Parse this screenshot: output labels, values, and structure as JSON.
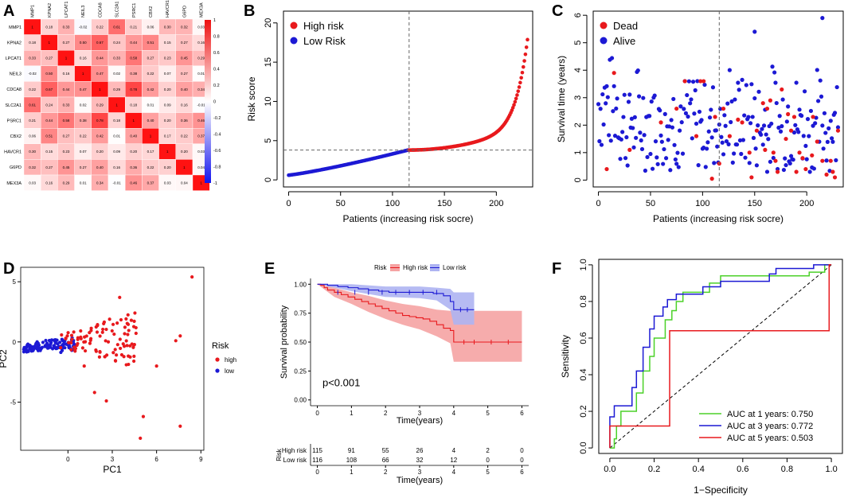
{
  "colors": {
    "red": "#e8191d",
    "blue": "#1c19d4",
    "green": "#4bd128",
    "ci_red": "#f5a3a3",
    "ci_blue": "#aeb4f2",
    "ring_blue": "#3a48d6",
    "ring_red": "#e84b4b"
  },
  "chart_data": [
    {
      "panel": "A",
      "type": "heatmap",
      "genes": [
        "MMP1",
        "KPNA2",
        "LPCAT1",
        "NEIL3",
        "CDCA8",
        "SLC2A1",
        "PSRC1",
        "CBX2",
        "HAVCR1",
        "G6PD",
        "MEX3A"
      ],
      "matrix": [
        [
          1,
          0.18,
          0.33,
          -0.02,
          0.22,
          0.61,
          0.21,
          0.06,
          0.3,
          0.32,
          0.03
        ],
        [
          0.18,
          1,
          0.27,
          0.5,
          0.67,
          0.24,
          0.44,
          0.51,
          0.15,
          0.27,
          0.16
        ],
        [
          0.33,
          0.27,
          1,
          0.16,
          0.44,
          0.33,
          0.58,
          0.27,
          0.23,
          0.45,
          0.29
        ],
        [
          -0.02,
          0.5,
          0.16,
          1,
          0.47,
          0.02,
          0.38,
          0.22,
          0.07,
          0.27,
          0.01
        ],
        [
          0.22,
          0.67,
          0.44,
          0.47,
          1,
          0.29,
          0.78,
          0.42,
          0.2,
          0.4,
          0.34
        ],
        [
          0.61,
          0.24,
          0.33,
          0.02,
          0.29,
          1,
          0.18,
          0.01,
          0.09,
          0.16,
          -0.01
        ],
        [
          0.21,
          0.44,
          0.58,
          0.38,
          0.78,
          0.18,
          1,
          0.4,
          0.2,
          0.36,
          0.46
        ],
        [
          0.06,
          0.51,
          0.27,
          0.22,
          0.42,
          0.01,
          0.4,
          1,
          0.17,
          0.22,
          0.37
        ],
        [
          0.3,
          0.15,
          0.23,
          0.07,
          0.2,
          0.09,
          0.2,
          0.17,
          1,
          0.2,
          0.03
        ],
        [
          0.32,
          0.27,
          0.45,
          0.27,
          0.4,
          0.16,
          0.36,
          0.22,
          0.2,
          1,
          0.04
        ],
        [
          0.03,
          0.16,
          0.29,
          0.01,
          0.34,
          -0.01,
          0.46,
          0.37,
          0.03,
          0.04,
          1
        ]
      ],
      "colorbar_ticks": [
        "1",
        "0.8",
        "0.6",
        "0.4",
        "0.2",
        "0",
        "-0.2",
        "-0.4",
        "-0.6",
        "-0.8",
        "-1"
      ]
    },
    {
      "panel": "B",
      "type": "scatter",
      "xlabel": "Patients (increasing risk socre)",
      "ylabel": "Risk score",
      "xlim": [
        0,
        231
      ],
      "ylim": [
        0,
        21
      ],
      "xticks": [
        "0",
        "50",
        "100",
        "150",
        "200"
      ],
      "yticks": [
        "0",
        "5",
        "10",
        "15",
        "20"
      ],
      "cutoff_index": 116,
      "cutoff_score": 3.8,
      "n_low": 116,
      "n_high": 115,
      "min_score": 0.6,
      "max_score": 20.5,
      "legend": [
        "High risk",
        "Low Risk"
      ]
    },
    {
      "panel": "C",
      "type": "scatter",
      "xlabel": "Patients (increasing risk socre)",
      "ylabel": "Survival time (years)",
      "xlim": [
        0,
        231
      ],
      "ylim": [
        0,
        6
      ],
      "xticks": [
        "0",
        "50",
        "100",
        "150",
        "200"
      ],
      "yticks": [
        "0",
        "1",
        "2",
        "3",
        "4",
        "5",
        "6"
      ],
      "cutoff_index": 116,
      "legend": [
        "Dead",
        "Alive"
      ],
      "dead_points": [
        [
          8,
          0.4
        ],
        [
          15,
          3.9
        ],
        [
          30,
          1.1
        ],
        [
          60,
          2.1
        ],
        [
          75,
          2.6
        ],
        [
          83,
          3.6
        ],
        [
          94,
          1.6
        ],
        [
          98,
          3.6
        ],
        [
          101,
          3.6
        ],
        [
          109,
          0.05
        ],
        [
          112,
          2.3
        ],
        [
          116,
          0.6
        ],
        [
          120,
          2.6
        ],
        [
          126,
          1.6
        ],
        [
          134,
          2.2
        ],
        [
          138,
          2.1
        ],
        [
          145,
          1.0
        ],
        [
          147,
          0.1
        ],
        [
          152,
          1.8
        ],
        [
          158,
          2.8
        ],
        [
          160,
          1.1
        ],
        [
          162,
          2.6
        ],
        [
          165,
          2.9
        ],
        [
          168,
          1.0
        ],
        [
          170,
          0.7
        ],
        [
          172,
          0.3
        ],
        [
          176,
          3.3
        ],
        [
          180,
          1.5
        ],
        [
          185,
          1.8
        ],
        [
          188,
          2.3
        ],
        [
          190,
          0.3
        ],
        [
          193,
          1.0
        ],
        [
          196,
          0.8
        ],
        [
          199,
          0.4
        ],
        [
          205,
          0.9
        ],
        [
          210,
          1.4
        ],
        [
          215,
          0.7
        ],
        [
          219,
          0.2
        ],
        [
          223,
          0.7
        ],
        [
          225,
          0.3
        ],
        [
          227,
          0.1
        ],
        [
          230,
          1.8
        ],
        [
          206,
          2.3
        ],
        [
          182,
          2.4
        ]
      ]
    },
    {
      "panel": "D",
      "type": "scatter",
      "xlabel": "PC1",
      "ylabel": "PC2",
      "xticks": [
        "0",
        "3",
        "6",
        "9"
      ],
      "yticks": [
        "-5",
        "0",
        "5"
      ],
      "xlim": [
        -3.2,
        9.2
      ],
      "ylim": [
        -9,
        6.2
      ],
      "legend_title": "Risk",
      "legend": [
        "high",
        "low"
      ],
      "high_extra_points": [
        [
          8.4,
          5.4
        ],
        [
          7.6,
          -7.0
        ],
        [
          5.1,
          -6.2
        ],
        [
          4.9,
          -8.0
        ],
        [
          7.3,
          0.1
        ],
        [
          7.6,
          0.5
        ],
        [
          3.5,
          3.7
        ],
        [
          1.1,
          -2.0
        ],
        [
          1.8,
          -4.2
        ],
        [
          2.6,
          -4.9
        ],
        [
          4.0,
          -0.3
        ],
        [
          6.0,
          -2.0
        ]
      ]
    },
    {
      "panel": "E",
      "type": "line",
      "title": "Risk",
      "legend": [
        "High risk",
        "Low risk"
      ],
      "xlabel": "Time(years)",
      "ylabel": "Survival probability",
      "xticks": [
        "0",
        "1",
        "2",
        "3",
        "4",
        "5",
        "6"
      ],
      "yticks": [
        "0.00",
        "0.25",
        "0.50",
        "0.75",
        "1.00"
      ],
      "xlim": [
        0,
        6.1
      ],
      "ylim": [
        0,
        1
      ],
      "pvalue": "p<0.001",
      "high_risk_curve": [
        [
          0,
          1.0
        ],
        [
          0.1,
          0.99
        ],
        [
          0.2,
          0.97
        ],
        [
          0.3,
          0.95
        ],
        [
          0.5,
          0.93
        ],
        [
          0.7,
          0.91
        ],
        [
          0.9,
          0.89
        ],
        [
          1.1,
          0.87
        ],
        [
          1.3,
          0.85
        ],
        [
          1.5,
          0.83
        ],
        [
          1.7,
          0.81
        ],
        [
          1.9,
          0.79
        ],
        [
          2.1,
          0.77
        ],
        [
          2.3,
          0.75
        ],
        [
          2.5,
          0.73
        ],
        [
          2.7,
          0.72
        ],
        [
          2.9,
          0.71
        ],
        [
          3.1,
          0.7
        ],
        [
          3.3,
          0.68
        ],
        [
          3.5,
          0.65
        ],
        [
          3.7,
          0.62
        ],
        [
          3.9,
          0.6
        ],
        [
          4.0,
          0.5
        ],
        [
          6.0,
          0.5
        ]
      ],
      "high_ci": {
        "upper": [
          [
            0,
            1.0
          ],
          [
            0.5,
            0.97
          ],
          [
            1.0,
            0.93
          ],
          [
            1.5,
            0.9
          ],
          [
            2.0,
            0.86
          ],
          [
            2.5,
            0.83
          ],
          [
            3.0,
            0.81
          ],
          [
            3.5,
            0.78
          ],
          [
            3.9,
            0.77
          ],
          [
            4.0,
            0.77
          ],
          [
            6.0,
            0.77
          ]
        ],
        "lower": [
          [
            0,
            1.0
          ],
          [
            0.5,
            0.89
          ],
          [
            1.0,
            0.83
          ],
          [
            1.5,
            0.76
          ],
          [
            2.0,
            0.7
          ],
          [
            2.5,
            0.65
          ],
          [
            3.0,
            0.61
          ],
          [
            3.5,
            0.55
          ],
          [
            3.9,
            0.49
          ],
          [
            4.0,
            0.33
          ],
          [
            6.0,
            0.33
          ]
        ]
      },
      "low_risk_curve": [
        [
          0,
          1.0
        ],
        [
          0.3,
          0.99
        ],
        [
          0.6,
          0.98
        ],
        [
          0.9,
          0.97
        ],
        [
          1.2,
          0.96
        ],
        [
          1.5,
          0.95
        ],
        [
          1.8,
          0.94
        ],
        [
          2.1,
          0.93
        ],
        [
          2.6,
          0.93
        ],
        [
          3.0,
          0.93
        ],
        [
          3.4,
          0.92
        ],
        [
          3.7,
          0.9
        ],
        [
          3.9,
          0.85
        ],
        [
          4.0,
          0.78
        ],
        [
          4.6,
          0.78
        ]
      ],
      "low_ci": {
        "upper": [
          [
            0,
            1.0
          ],
          [
            1.0,
            1.0
          ],
          [
            2.0,
            0.98
          ],
          [
            3.0,
            0.98
          ],
          [
            3.5,
            0.97
          ],
          [
            3.9,
            0.96
          ],
          [
            4.0,
            0.93
          ],
          [
            4.6,
            0.93
          ]
        ],
        "lower": [
          [
            0,
            1.0
          ],
          [
            1.0,
            0.94
          ],
          [
            2.0,
            0.89
          ],
          [
            3.0,
            0.88
          ],
          [
            3.5,
            0.86
          ],
          [
            3.9,
            0.78
          ],
          [
            4.0,
            0.65
          ],
          [
            4.6,
            0.65
          ]
        ]
      },
      "risk_table": {
        "title": "Risk",
        "rows": [
          {
            "label": "High risk",
            "values": [
              "115",
              "91",
              "55",
              "26",
              "4",
              "2",
              "0"
            ]
          },
          {
            "label": "Low risk",
            "values": [
              "116",
              "108",
              "66",
              "32",
              "12",
              "0",
              "0"
            ]
          }
        ],
        "xlabel": "Time(years)"
      }
    },
    {
      "panel": "F",
      "type": "line",
      "xlabel": "1−Specificity",
      "ylabel": "Sensitivity",
      "xticks": [
        "0.0",
        "0.2",
        "0.4",
        "0.6",
        "0.8",
        "1.0"
      ],
      "yticks": [
        "0.0",
        "0.2",
        "0.4",
        "0.6",
        "0.8",
        "1.0"
      ],
      "xlim": [
        0,
        1
      ],
      "ylim": [
        0,
        1
      ],
      "series": [
        {
          "name": "AUC at 1 years: 0.750",
          "color": "green",
          "points": [
            [
              0,
              0
            ],
            [
              0.02,
              0
            ],
            [
              0.02,
              0.05
            ],
            [
              0.03,
              0.05
            ],
            [
              0.03,
              0.12
            ],
            [
              0.05,
              0.12
            ],
            [
              0.05,
              0.2
            ],
            [
              0.12,
              0.2
            ],
            [
              0.12,
              0.3
            ],
            [
              0.15,
              0.3
            ],
            [
              0.15,
              0.42
            ],
            [
              0.18,
              0.42
            ],
            [
              0.18,
              0.5
            ],
            [
              0.2,
              0.5
            ],
            [
              0.2,
              0.6
            ],
            [
              0.25,
              0.6
            ],
            [
              0.25,
              0.7
            ],
            [
              0.28,
              0.7
            ],
            [
              0.28,
              0.75
            ],
            [
              0.3,
              0.75
            ],
            [
              0.3,
              0.8
            ],
            [
              0.33,
              0.8
            ],
            [
              0.33,
              0.85
            ],
            [
              0.45,
              0.85
            ],
            [
              0.45,
              0.9
            ],
            [
              0.5,
              0.9
            ],
            [
              0.5,
              0.94
            ],
            [
              0.9,
              0.94
            ],
            [
              0.9,
              0.96
            ],
            [
              0.97,
              0.96
            ],
            [
              0.97,
              1.0
            ],
            [
              1,
              1
            ]
          ]
        },
        {
          "name": "AUC at 3 years: 0.772",
          "color": "blue",
          "points": [
            [
              0,
              0
            ],
            [
              0,
              0.17
            ],
            [
              0.02,
              0.17
            ],
            [
              0.02,
              0.23
            ],
            [
              0.1,
              0.23
            ],
            [
              0.1,
              0.33
            ],
            [
              0.12,
              0.33
            ],
            [
              0.12,
              0.42
            ],
            [
              0.15,
              0.42
            ],
            [
              0.15,
              0.55
            ],
            [
              0.18,
              0.55
            ],
            [
              0.18,
              0.65
            ],
            [
              0.2,
              0.65
            ],
            [
              0.2,
              0.72
            ],
            [
              0.24,
              0.72
            ],
            [
              0.24,
              0.77
            ],
            [
              0.26,
              0.77
            ],
            [
              0.26,
              0.81
            ],
            [
              0.3,
              0.81
            ],
            [
              0.3,
              0.84
            ],
            [
              0.42,
              0.84
            ],
            [
              0.42,
              0.88
            ],
            [
              0.5,
              0.88
            ],
            [
              0.5,
              0.91
            ],
            [
              0.72,
              0.91
            ],
            [
              0.72,
              0.95
            ],
            [
              0.75,
              0.95
            ],
            [
              0.75,
              0.98
            ],
            [
              0.92,
              0.98
            ],
            [
              0.92,
              1.0
            ],
            [
              1,
              1
            ]
          ]
        },
        {
          "name": "AUC at 5 years: 0.503",
          "color": "red",
          "points": [
            [
              0,
              0
            ],
            [
              0,
              0.12
            ],
            [
              0.27,
              0.12
            ],
            [
              0.27,
              0.64
            ],
            [
              0.99,
              0.64
            ],
            [
              0.99,
              1.0
            ],
            [
              1,
              1
            ]
          ]
        }
      ]
    }
  ],
  "panels": {
    "a": "A",
    "b": "B",
    "c": "C",
    "d": "D",
    "e": "E",
    "f": "F"
  }
}
